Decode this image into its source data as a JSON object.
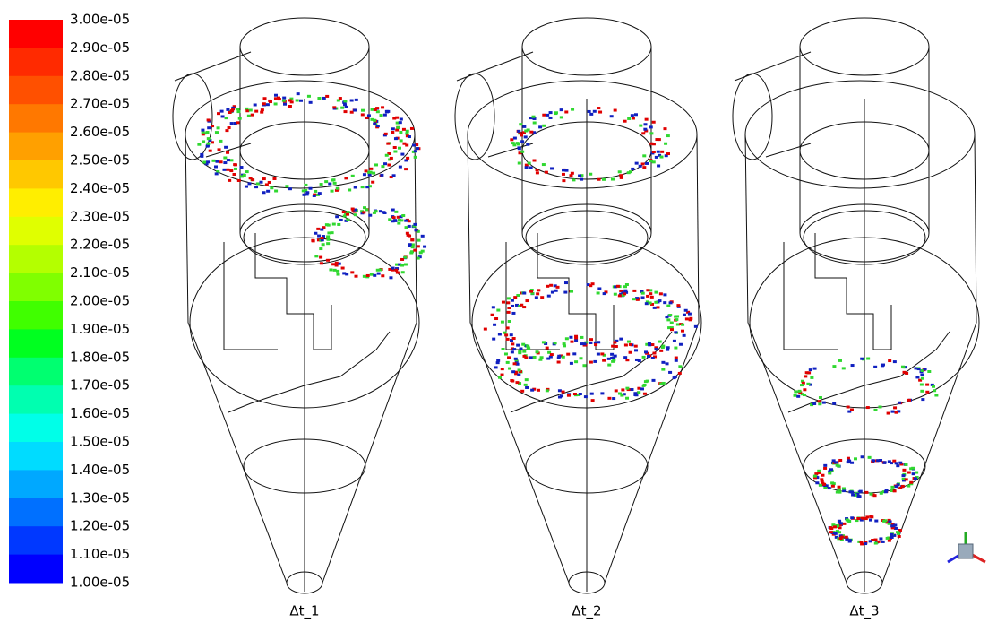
{
  "colorbar": {
    "labels": [
      "3.00e-05",
      "2.90e-05",
      "2.80e-05",
      "2.70e-05",
      "2.60e-05",
      "2.50e-05",
      "2.40e-05",
      "2.30e-05",
      "2.20e-05",
      "2.10e-05",
      "2.00e-05",
      "1.90e-05",
      "1.80e-05",
      "1.70e-05",
      "1.60e-05",
      "1.50e-05",
      "1.40e-05",
      "1.30e-05",
      "1.20e-05",
      "1.10e-05",
      "1.00e-05"
    ],
    "colors": [
      "#ff0000",
      "#ff2a00",
      "#ff5000",
      "#ff7800",
      "#ffa000",
      "#ffc800",
      "#ffee00",
      "#e0ff00",
      "#b4ff00",
      "#80ff00",
      "#40ff00",
      "#00ff20",
      "#00ff70",
      "#00ffb0",
      "#00ffe8",
      "#00dcff",
      "#00a8ff",
      "#0070ff",
      "#0038ff",
      "#0000ff"
    ]
  },
  "panels": [
    {
      "label": "Δt_1"
    },
    {
      "label": "Δt_2"
    },
    {
      "label": "Δt_3"
    }
  ]
}
